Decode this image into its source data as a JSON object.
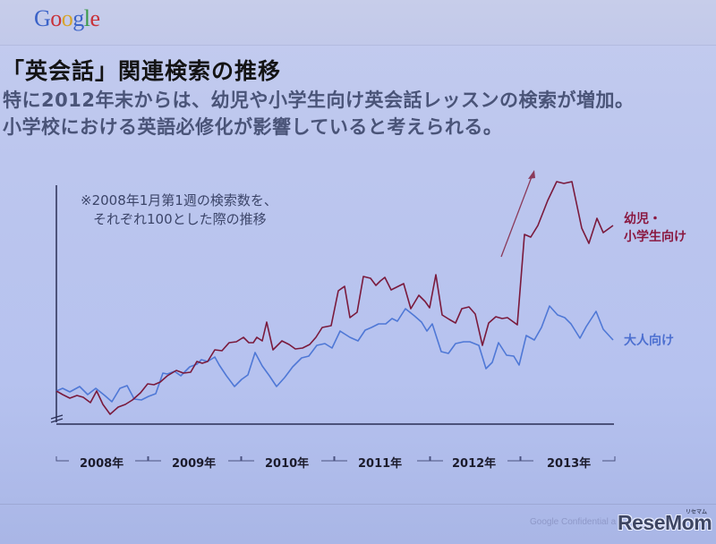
{
  "header": {
    "logo_letters": [
      {
        "ch": "G",
        "color": "#3b63c8"
      },
      {
        "ch": "o",
        "color": "#c8323a"
      },
      {
        "ch": "o",
        "color": "#d6a52c"
      },
      {
        "ch": "g",
        "color": "#3b63c8"
      },
      {
        "ch": "l",
        "color": "#3a9a4a"
      },
      {
        "ch": "e",
        "color": "#c8323a"
      }
    ]
  },
  "slide": {
    "title": "「英会話」関連検索の推移",
    "subtitle_line1": "特に2012年末からは、幼児や小学生向け英会話レッスンの検索が増加。",
    "subtitle_line2": "小学校における英語必修化が影響していると考えられる。"
  },
  "chart_data": {
    "type": "line",
    "title": "「英会話」関連検索の推移",
    "note_line1": "※2008年1月第1週の検索数を、",
    "note_line2": "それぞれ100とした際の推移",
    "xlabel": "",
    "ylabel": "",
    "x_tick_labels": [
      "2008年",
      "2009年",
      "2010年",
      "2011年",
      "2012年",
      "2013年"
    ],
    "baseline_value": 100,
    "y_axis_broken": true,
    "grid": false,
    "legend_position": "right, inline at line ends",
    "annotation": "upward arrow near late-2012 surge in child series",
    "colors": {
      "child": "#7a1a3c",
      "adult": "#4f78d6",
      "axis": "#2a2f55",
      "arrow": "#8a3a5a"
    },
    "series": [
      {
        "name": "幼児・小学生向け",
        "label_line1": "幼児・",
        "label_line2": "小学生向け",
        "color": "#7a1a3c",
        "approx_index_values": [
          100,
          96,
          97,
          96,
          92,
          101,
          88,
          83,
          88,
          90,
          96,
          101,
          101,
          99,
          105,
          106,
          101,
          107,
          107,
          111,
          116,
          118,
          124,
          120,
          120,
          133,
          133,
          143,
          128,
          132,
          133,
          128,
          124,
          127,
          133,
          139,
          133,
          162,
          164,
          142,
          148,
          165,
          165,
          162,
          154,
          151,
          161,
          156,
          161,
          154,
          139,
          131,
          148,
          141,
          118,
          163,
          152,
          141,
          138,
          131,
          138,
          139,
          135,
          120,
          113,
          125,
          131,
          135,
          125,
          124,
          118,
          128,
          131,
          133,
          132,
          112,
          125,
          135,
          128,
          121,
          162,
          160,
          172,
          186,
          208,
          218,
          228,
          242,
          248,
          246,
          248,
          240,
          232,
          218,
          205,
          198,
          212,
          217,
          204,
          211,
          209
        ]
      },
      {
        "name": "大人向け",
        "label": "大人向け",
        "color": "#4f78d6",
        "approx_index_values": [
          100,
          102,
          98,
          103,
          96,
          102,
          97,
          92,
          101,
          103,
          91,
          91,
          94,
          95,
          107,
          108,
          104,
          113,
          116,
          118,
          117,
          120,
          121,
          107,
          98,
          102,
          104,
          118,
          106,
          98,
          102,
          110,
          116,
          117,
          122,
          124,
          121,
          132,
          129,
          124,
          122,
          126,
          129,
          128,
          132,
          134,
          139,
          136,
          140,
          136,
          143,
          133,
          127,
          121,
          133,
          122,
          122,
          126,
          127,
          129,
          124,
          116,
          120,
          121,
          126,
          132,
          126,
          120,
          131,
          124,
          120,
          134,
          133,
          144,
          139,
          135,
          133,
          128,
          138,
          143,
          136,
          127
        ]
      }
    ]
  },
  "axis": {
    "year_labels": [
      "2008年",
      "2009年",
      "2010年",
      "2011年",
      "2012年",
      "2013年"
    ]
  },
  "legend": {
    "child_line1": "幼児・",
    "child_line2": "小学生向け",
    "adult": "大人向け"
  },
  "footer": {
    "confidential": "Google Confidential a",
    "watermark": "ReseMom",
    "watermark_ruby": "リセマム"
  }
}
